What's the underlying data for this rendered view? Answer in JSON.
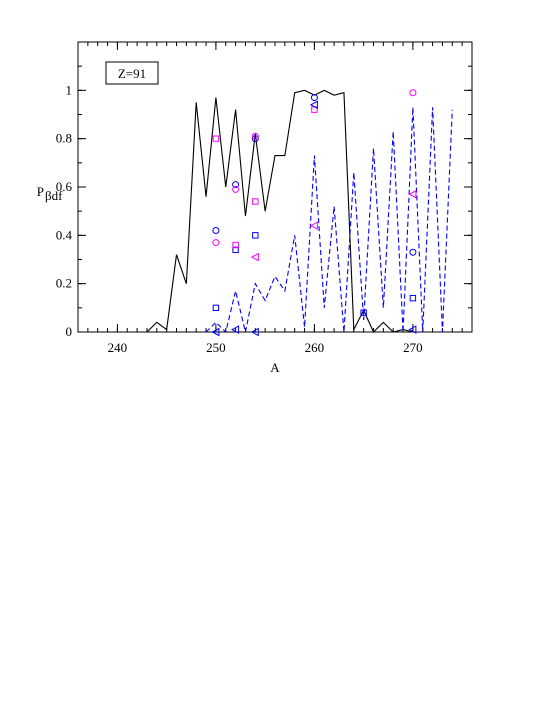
{
  "chart_data": {
    "type": "line",
    "annotation": "Z=91",
    "xlabel": "A",
    "ylabel": {
      "main": "P",
      "sub": "βdf"
    },
    "xlim": [
      236,
      276
    ],
    "ylim": [
      0,
      1.2
    ],
    "xticks": [
      240,
      250,
      260,
      270
    ],
    "yticks": [
      0,
      0.2,
      0.4,
      0.6,
      0.8,
      1
    ],
    "xminor_step": 1,
    "yminor_step": 0.1,
    "series": [
      {
        "type": "line",
        "color": "#000000",
        "dash": false,
        "x": [
          236,
          243,
          244,
          245,
          246,
          247,
          248,
          249,
          250,
          251,
          252,
          253,
          254,
          255,
          256,
          257,
          258,
          259,
          260,
          261,
          262,
          263,
          264,
          265,
          266,
          267,
          268,
          269,
          270
        ],
        "values": [
          0,
          0,
          0.04,
          0.01,
          0.32,
          0.2,
          0.95,
          0.56,
          0.97,
          0.6,
          0.92,
          0.48,
          0.82,
          0.5,
          0.73,
          0.73,
          0.99,
          1.0,
          0.98,
          1.0,
          0.98,
          0.99,
          0.01,
          0.09,
          0.0,
          0.04,
          0.0,
          0.01,
          0.0
        ]
      },
      {
        "type": "line",
        "color": "#0000ff",
        "dash": true,
        "x": [
          249,
          250,
          251,
          252,
          253,
          254,
          255,
          256,
          257,
          258,
          259,
          260,
          261,
          262,
          263,
          264,
          265,
          266,
          267,
          268,
          269,
          270,
          271,
          272,
          273,
          274
        ],
        "values": [
          0.0,
          0.04,
          0.0,
          0.17,
          0.0,
          0.2,
          0.13,
          0.23,
          0.17,
          0.4,
          0.02,
          0.73,
          0.1,
          0.52,
          0.0,
          0.66,
          0.05,
          0.76,
          0.1,
          0.83,
          0.0,
          0.93,
          0.0,
          0.93,
          0.0,
          0.92
        ]
      },
      {
        "type": "scatter",
        "color": "#0000ff",
        "marker": "circle",
        "x": [
          250,
          252,
          254,
          260,
          270
        ],
        "values": [
          0.42,
          0.61,
          0.8,
          0.97,
          0.33
        ]
      },
      {
        "type": "scatter",
        "color": "#ff00ff",
        "marker": "circle",
        "x": [
          250,
          252,
          254,
          270
        ],
        "values": [
          0.37,
          0.59,
          0.81,
          0.99
        ]
      },
      {
        "type": "scatter",
        "color": "#0000ff",
        "marker": "square",
        "x": [
          250,
          252,
          254,
          265,
          270
        ],
        "values": [
          0.1,
          0.34,
          0.4,
          0.08,
          0.14
        ]
      },
      {
        "type": "scatter",
        "color": "#ff00ff",
        "marker": "square",
        "x": [
          250,
          252,
          254,
          260
        ],
        "values": [
          0.8,
          0.36,
          0.54,
          0.92
        ]
      },
      {
        "type": "scatter",
        "color": "#0000ff",
        "marker": "triangle-left",
        "x": [
          250,
          252,
          254,
          260,
          270
        ],
        "values": [
          0.0,
          0.01,
          0.0,
          0.94,
          0.01
        ]
      },
      {
        "type": "scatter",
        "color": "#ff00ff",
        "marker": "triangle-left",
        "x": [
          254,
          260,
          270
        ],
        "values": [
          0.31,
          0.44,
          0.57
        ]
      }
    ]
  }
}
